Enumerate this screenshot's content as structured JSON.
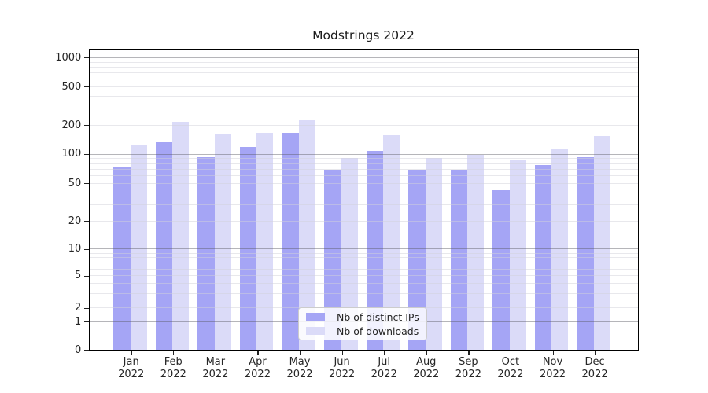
{
  "title": "Modstrings 2022",
  "chart_data": {
    "type": "bar",
    "title": "Modstrings 2022",
    "categories": [
      "Jan 2022",
      "Feb 2022",
      "Mar 2022",
      "Apr 2022",
      "May 2022",
      "Jun 2022",
      "Jul 2022",
      "Aug 2022",
      "Sep 2022",
      "Oct 2022",
      "Nov 2022",
      "Dec 2022"
    ],
    "series": [
      {
        "name": "Nb of distinct IPs",
        "color": "#a5a5f5",
        "values": [
          74,
          133,
          93,
          118,
          167,
          69,
          107,
          69,
          68,
          42,
          77,
          92
        ]
      },
      {
        "name": "Nb of downloads",
        "color": "#dbdbf8",
        "values": [
          125,
          215,
          164,
          165,
          226,
          90,
          157,
          91,
          98,
          85,
          112,
          153
        ]
      }
    ],
    "xlabel": "",
    "ylabel": "",
    "yscale": "symlog",
    "ylim": [
      0,
      1250
    ],
    "y_axis_ticks": [
      0,
      1,
      2,
      5,
      10,
      20,
      50,
      100,
      200,
      500,
      1000
    ],
    "y_major_gridlines": [
      1,
      10,
      100,
      1000
    ],
    "y_minor_gridlines": [
      2,
      3,
      4,
      5,
      6,
      7,
      8,
      9,
      20,
      30,
      40,
      50,
      60,
      70,
      80,
      90,
      200,
      300,
      400,
      500,
      600,
      700,
      800,
      900
    ],
    "grid": "on",
    "legend_position": "lower center"
  }
}
